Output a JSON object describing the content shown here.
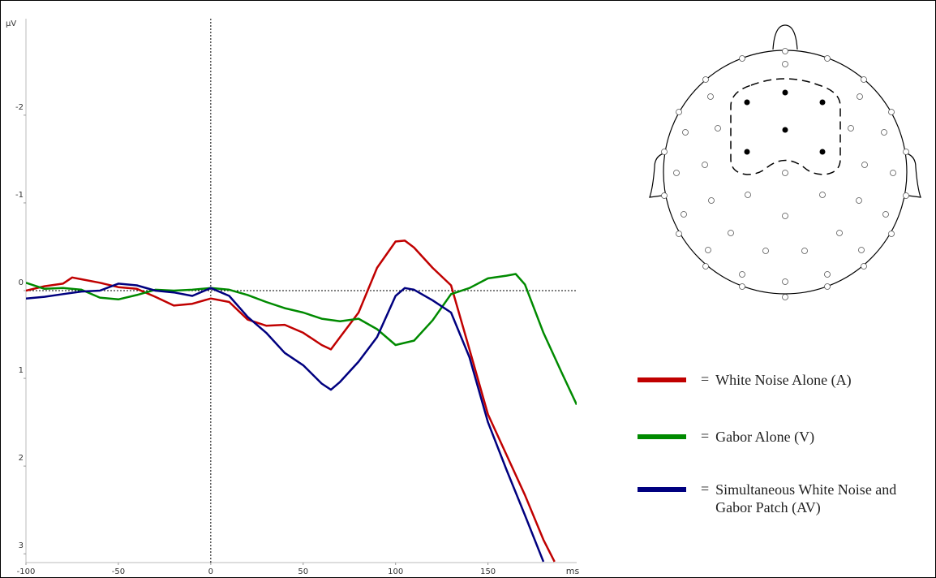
{
  "chart_data": {
    "type": "line",
    "y_unit_label": "µV",
    "x_unit_label": "ms",
    "xlim": [
      -100,
      198
    ],
    "xticks": [
      -100,
      -50,
      0,
      50,
      100,
      150
    ],
    "ylim": [
      -3.1,
      3.1
    ],
    "yticks": [
      -2,
      -1,
      0,
      1,
      2,
      3
    ],
    "y_inverted": true,
    "zero_lines": true,
    "legend_separator": "=",
    "series": [
      {
        "name": "White Noise Alone (A)",
        "color": "#c00000",
        "x": [
          -100,
          -90,
          -80,
          -75,
          -70,
          -60,
          -50,
          -40,
          -30,
          -20,
          -10,
          0,
          10,
          20,
          30,
          40,
          50,
          60,
          65,
          70,
          80,
          90,
          100,
          105,
          110,
          120,
          130,
          140,
          150,
          160,
          170,
          180,
          186
        ],
        "values": [
          0,
          -0.05,
          -0.08,
          -0.15,
          -0.13,
          -0.09,
          -0.04,
          -0.02,
          0.07,
          0.17,
          0.15,
          0.09,
          0.13,
          0.33,
          0.4,
          0.39,
          0.48,
          0.62,
          0.67,
          0.53,
          0.25,
          -0.26,
          -0.56,
          -0.57,
          -0.49,
          -0.26,
          -0.06,
          0.67,
          1.41,
          1.87,
          2.33,
          2.84,
          3.09
        ]
      },
      {
        "name": "Gabor Alone (V)",
        "color": "#008a00",
        "x": [
          -100,
          -90,
          -80,
          -70,
          -60,
          -50,
          -40,
          -30,
          -20,
          -10,
          0,
          10,
          20,
          30,
          40,
          50,
          60,
          70,
          80,
          90,
          100,
          110,
          120,
          130,
          140,
          150,
          160,
          165,
          170,
          180,
          190,
          198
        ],
        "values": [
          -0.09,
          -0.02,
          -0.03,
          -0.01,
          0.08,
          0.1,
          0.05,
          -0.01,
          0,
          -0.01,
          -0.03,
          -0.01,
          0.05,
          0.13,
          0.2,
          0.25,
          0.32,
          0.35,
          0.32,
          0.44,
          0.62,
          0.57,
          0.34,
          0.04,
          -0.03,
          -0.14,
          -0.17,
          -0.19,
          -0.07,
          0.48,
          0.94,
          1.3
        ]
      },
      {
        "name": "Simultaneous White Noise and Gabor Patch (AV)",
        "color": "#00007f",
        "x": [
          -100,
          -90,
          -80,
          -70,
          -60,
          -50,
          -40,
          -30,
          -20,
          -10,
          0,
          10,
          20,
          30,
          40,
          50,
          60,
          65,
          70,
          80,
          90,
          100,
          105,
          110,
          120,
          130,
          140,
          150,
          160,
          170,
          180
        ],
        "values": [
          0.09,
          0.07,
          0.04,
          0.01,
          0,
          -0.08,
          -0.06,
          0,
          0.02,
          0.06,
          -0.03,
          0.06,
          0.3,
          0.48,
          0.71,
          0.85,
          1.06,
          1.13,
          1.04,
          0.81,
          0.53,
          0.06,
          -0.03,
          -0.01,
          0.11,
          0.25,
          0.76,
          1.5,
          2.04,
          2.56,
          3.09
        ]
      }
    ]
  }
}
